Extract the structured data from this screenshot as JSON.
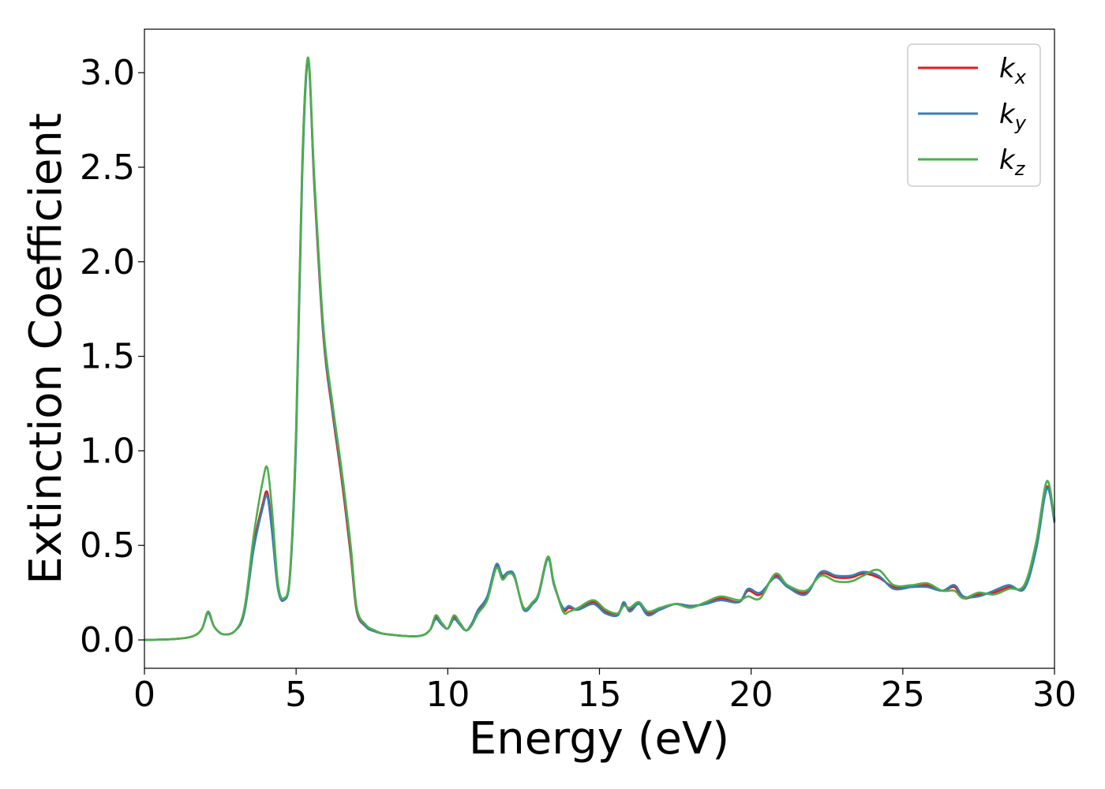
{
  "chart_data": {
    "type": "line",
    "title": "",
    "xlabel": "Energy (eV)",
    "ylabel": "Extinction Coefficient",
    "xlim": [
      0,
      30
    ],
    "ylim": [
      -0.15,
      3.23
    ],
    "xticks": [
      0,
      5,
      10,
      15,
      20,
      25,
      30
    ],
    "xtick_labels": [
      "0",
      "5",
      "10",
      "15",
      "20",
      "25",
      "30"
    ],
    "yticks": [
      0.0,
      0.5,
      1.0,
      1.5,
      2.0,
      2.5,
      3.0
    ],
    "ytick_labels": [
      "0.0",
      "0.5",
      "1.0",
      "1.5",
      "2.0",
      "2.5",
      "3.0"
    ],
    "grid": false,
    "legend": {
      "position": "top-right"
    },
    "series": [
      {
        "name": "k",
        "subscript": "x",
        "color": "#e41a1c",
        "points": [
          [
            0,
            0.0
          ],
          [
            1,
            0.005
          ],
          [
            1.6,
            0.02
          ],
          [
            1.9,
            0.06
          ],
          [
            2.1,
            0.15
          ],
          [
            2.3,
            0.07
          ],
          [
            2.6,
            0.03
          ],
          [
            3.0,
            0.05
          ],
          [
            3.3,
            0.15
          ],
          [
            3.6,
            0.5
          ],
          [
            3.9,
            0.72
          ],
          [
            4.05,
            0.78
          ],
          [
            4.2,
            0.6
          ],
          [
            4.4,
            0.28
          ],
          [
            4.6,
            0.22
          ],
          [
            4.8,
            0.35
          ],
          [
            5.0,
            1.1
          ],
          [
            5.2,
            2.5
          ],
          [
            5.4,
            3.07
          ],
          [
            5.6,
            2.4
          ],
          [
            5.9,
            1.6
          ],
          [
            6.2,
            1.2
          ],
          [
            6.5,
            0.85
          ],
          [
            6.8,
            0.45
          ],
          [
            7.0,
            0.15
          ],
          [
            7.3,
            0.07
          ],
          [
            7.6,
            0.045
          ],
          [
            8.0,
            0.03
          ],
          [
            9.0,
            0.02
          ],
          [
            9.4,
            0.05
          ],
          [
            9.6,
            0.12
          ],
          [
            9.8,
            0.09
          ],
          [
            10.0,
            0.06
          ],
          [
            10.2,
            0.12
          ],
          [
            10.4,
            0.09
          ],
          [
            10.6,
            0.05
          ],
          [
            10.8,
            0.08
          ],
          [
            11.0,
            0.15
          ],
          [
            11.3,
            0.22
          ],
          [
            11.6,
            0.39
          ],
          [
            11.8,
            0.33
          ],
          [
            12.0,
            0.35
          ],
          [
            12.2,
            0.33
          ],
          [
            12.5,
            0.17
          ],
          [
            12.8,
            0.2
          ],
          [
            13.0,
            0.25
          ],
          [
            13.3,
            0.44
          ],
          [
            13.5,
            0.3
          ],
          [
            13.8,
            0.16
          ],
          [
            14.0,
            0.17
          ],
          [
            14.3,
            0.16
          ],
          [
            14.8,
            0.2
          ],
          [
            15.2,
            0.15
          ],
          [
            15.6,
            0.14
          ],
          [
            15.8,
            0.19
          ],
          [
            16.0,
            0.16
          ],
          [
            16.3,
            0.2
          ],
          [
            16.6,
            0.14
          ],
          [
            17.0,
            0.16
          ],
          [
            17.5,
            0.19
          ],
          [
            18.0,
            0.18
          ],
          [
            18.5,
            0.19
          ],
          [
            19.0,
            0.22
          ],
          [
            19.6,
            0.2
          ],
          [
            19.9,
            0.26
          ],
          [
            20.3,
            0.24
          ],
          [
            20.8,
            0.34
          ],
          [
            21.2,
            0.28
          ],
          [
            21.8,
            0.25
          ],
          [
            22.3,
            0.35
          ],
          [
            22.8,
            0.33
          ],
          [
            23.3,
            0.33
          ],
          [
            23.7,
            0.35
          ],
          [
            24.2,
            0.33
          ],
          [
            24.7,
            0.28
          ],
          [
            25.3,
            0.28
          ],
          [
            25.8,
            0.29
          ],
          [
            26.3,
            0.26
          ],
          [
            26.7,
            0.28
          ],
          [
            27.0,
            0.22
          ],
          [
            27.5,
            0.24
          ],
          [
            28.0,
            0.25
          ],
          [
            28.5,
            0.28
          ],
          [
            29.0,
            0.28
          ],
          [
            29.4,
            0.5
          ],
          [
            29.75,
            0.81
          ],
          [
            30,
            0.63
          ]
        ]
      },
      {
        "name": "k",
        "subscript": "y",
        "color": "#377eb8",
        "points": [
          [
            0,
            0.0
          ],
          [
            1,
            0.005
          ],
          [
            1.6,
            0.02
          ],
          [
            1.9,
            0.06
          ],
          [
            2.1,
            0.14
          ],
          [
            2.3,
            0.07
          ],
          [
            2.6,
            0.03
          ],
          [
            3.0,
            0.05
          ],
          [
            3.3,
            0.15
          ],
          [
            3.6,
            0.48
          ],
          [
            3.9,
            0.7
          ],
          [
            4.05,
            0.76
          ],
          [
            4.2,
            0.58
          ],
          [
            4.4,
            0.27
          ],
          [
            4.6,
            0.21
          ],
          [
            4.8,
            0.34
          ],
          [
            5.0,
            1.05
          ],
          [
            5.2,
            2.45
          ],
          [
            5.4,
            3.06
          ],
          [
            5.6,
            2.42
          ],
          [
            5.9,
            1.62
          ],
          [
            6.2,
            1.22
          ],
          [
            6.5,
            0.88
          ],
          [
            6.8,
            0.48
          ],
          [
            7.0,
            0.16
          ],
          [
            7.3,
            0.07
          ],
          [
            7.6,
            0.045
          ],
          [
            8.0,
            0.03
          ],
          [
            9.0,
            0.02
          ],
          [
            9.4,
            0.05
          ],
          [
            9.6,
            0.11
          ],
          [
            9.8,
            0.08
          ],
          [
            10.0,
            0.06
          ],
          [
            10.2,
            0.11
          ],
          [
            10.4,
            0.08
          ],
          [
            10.6,
            0.05
          ],
          [
            10.8,
            0.09
          ],
          [
            11.0,
            0.16
          ],
          [
            11.3,
            0.23
          ],
          [
            11.6,
            0.4
          ],
          [
            11.8,
            0.34
          ],
          [
            12.0,
            0.36
          ],
          [
            12.2,
            0.34
          ],
          [
            12.5,
            0.16
          ],
          [
            12.8,
            0.19
          ],
          [
            13.0,
            0.24
          ],
          [
            13.3,
            0.43
          ],
          [
            13.5,
            0.29
          ],
          [
            13.8,
            0.17
          ],
          [
            14.0,
            0.18
          ],
          [
            14.3,
            0.16
          ],
          [
            14.8,
            0.19
          ],
          [
            15.2,
            0.14
          ],
          [
            15.6,
            0.13
          ],
          [
            15.8,
            0.2
          ],
          [
            16.0,
            0.15
          ],
          [
            16.3,
            0.19
          ],
          [
            16.6,
            0.13
          ],
          [
            17.0,
            0.16
          ],
          [
            17.5,
            0.19
          ],
          [
            18.0,
            0.18
          ],
          [
            18.5,
            0.19
          ],
          [
            19.0,
            0.21
          ],
          [
            19.6,
            0.2
          ],
          [
            19.9,
            0.27
          ],
          [
            20.3,
            0.25
          ],
          [
            20.8,
            0.33
          ],
          [
            21.2,
            0.28
          ],
          [
            21.8,
            0.24
          ],
          [
            22.3,
            0.36
          ],
          [
            22.8,
            0.34
          ],
          [
            23.3,
            0.34
          ],
          [
            23.7,
            0.36
          ],
          [
            24.2,
            0.34
          ],
          [
            24.7,
            0.27
          ],
          [
            25.3,
            0.28
          ],
          [
            25.8,
            0.28
          ],
          [
            26.3,
            0.26
          ],
          [
            26.7,
            0.29
          ],
          [
            27.0,
            0.23
          ],
          [
            27.5,
            0.23
          ],
          [
            28.0,
            0.26
          ],
          [
            28.5,
            0.29
          ],
          [
            29.0,
            0.27
          ],
          [
            29.4,
            0.48
          ],
          [
            29.75,
            0.8
          ],
          [
            30,
            0.62
          ]
        ]
      },
      {
        "name": "k",
        "subscript": "z",
        "color": "#4daf4a",
        "points": [
          [
            0,
            0.0
          ],
          [
            1,
            0.005
          ],
          [
            1.6,
            0.02
          ],
          [
            1.9,
            0.06
          ],
          [
            2.1,
            0.15
          ],
          [
            2.3,
            0.07
          ],
          [
            2.6,
            0.03
          ],
          [
            3.0,
            0.05
          ],
          [
            3.3,
            0.17
          ],
          [
            3.6,
            0.55
          ],
          [
            3.9,
            0.84
          ],
          [
            4.05,
            0.91
          ],
          [
            4.2,
            0.7
          ],
          [
            4.4,
            0.3
          ],
          [
            4.6,
            0.22
          ],
          [
            4.8,
            0.36
          ],
          [
            5.0,
            1.12
          ],
          [
            5.2,
            2.52
          ],
          [
            5.4,
            3.08
          ],
          [
            5.6,
            2.45
          ],
          [
            5.9,
            1.65
          ],
          [
            6.2,
            1.25
          ],
          [
            6.5,
            0.9
          ],
          [
            6.8,
            0.5
          ],
          [
            7.0,
            0.17
          ],
          [
            7.3,
            0.08
          ],
          [
            7.6,
            0.05
          ],
          [
            8.0,
            0.03
          ],
          [
            9.0,
            0.02
          ],
          [
            9.4,
            0.05
          ],
          [
            9.6,
            0.13
          ],
          [
            9.8,
            0.09
          ],
          [
            10.0,
            0.06
          ],
          [
            10.2,
            0.13
          ],
          [
            10.4,
            0.09
          ],
          [
            10.6,
            0.05
          ],
          [
            10.8,
            0.08
          ],
          [
            11.0,
            0.14
          ],
          [
            11.3,
            0.21
          ],
          [
            11.6,
            0.38
          ],
          [
            11.8,
            0.32
          ],
          [
            12.0,
            0.35
          ],
          [
            12.2,
            0.33
          ],
          [
            12.5,
            0.17
          ],
          [
            12.8,
            0.2
          ],
          [
            13.0,
            0.25
          ],
          [
            13.3,
            0.44
          ],
          [
            13.5,
            0.3
          ],
          [
            13.8,
            0.15
          ],
          [
            14.0,
            0.15
          ],
          [
            14.3,
            0.17
          ],
          [
            14.8,
            0.21
          ],
          [
            15.2,
            0.16
          ],
          [
            15.6,
            0.14
          ],
          [
            15.8,
            0.18
          ],
          [
            16.0,
            0.17
          ],
          [
            16.3,
            0.2
          ],
          [
            16.6,
            0.15
          ],
          [
            17.0,
            0.17
          ],
          [
            17.5,
            0.19
          ],
          [
            18.0,
            0.17
          ],
          [
            18.5,
            0.2
          ],
          [
            19.0,
            0.23
          ],
          [
            19.6,
            0.21
          ],
          [
            19.9,
            0.23
          ],
          [
            20.3,
            0.22
          ],
          [
            20.8,
            0.35
          ],
          [
            21.2,
            0.29
          ],
          [
            21.8,
            0.26
          ],
          [
            22.3,
            0.34
          ],
          [
            22.8,
            0.31
          ],
          [
            23.3,
            0.31
          ],
          [
            23.7,
            0.34
          ],
          [
            24.2,
            0.37
          ],
          [
            24.7,
            0.29
          ],
          [
            25.3,
            0.29
          ],
          [
            25.8,
            0.3
          ],
          [
            26.3,
            0.26
          ],
          [
            26.7,
            0.26
          ],
          [
            27.0,
            0.22
          ],
          [
            27.5,
            0.25
          ],
          [
            28.0,
            0.24
          ],
          [
            28.5,
            0.27
          ],
          [
            29.0,
            0.29
          ],
          [
            29.4,
            0.52
          ],
          [
            29.75,
            0.84
          ],
          [
            30,
            0.64
          ]
        ]
      }
    ]
  }
}
